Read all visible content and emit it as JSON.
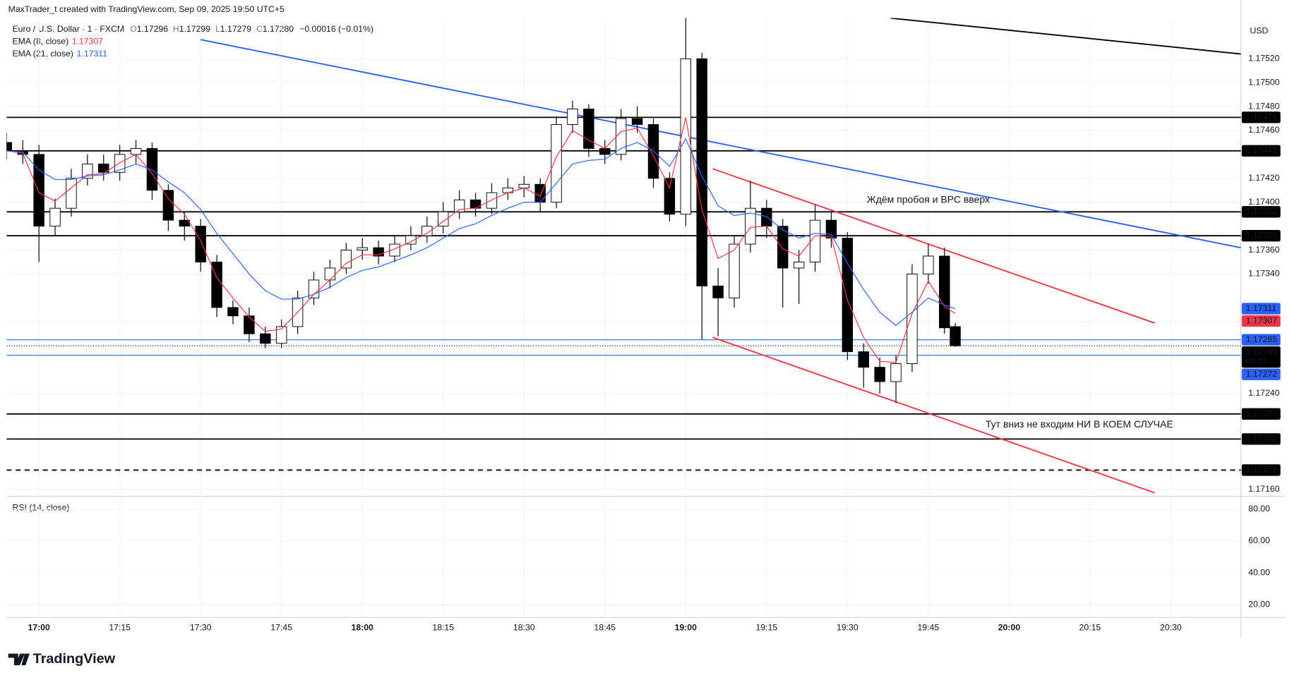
{
  "header": {
    "attribution": "MaxTrader_t created with TradingView.com, Sep 09, 2025 19:50 UTC+5",
    "symbol": "Euro / U.S. Dollar · 1 · FXCM",
    "ohlc": [
      {
        "key": "O",
        "value": "1.17296"
      },
      {
        "key": "H",
        "value": "1.17299"
      },
      {
        "key": "L",
        "value": "1.17279"
      },
      {
        "key": "C",
        "value": "1.17280"
      }
    ],
    "change": "−0.00016 (−0.01%)",
    "currency": "USD"
  },
  "chart_data": [
    {
      "type": "candlestick",
      "x": [
        "16:54",
        "16:57",
        "17:00",
        "17:03",
        "17:06",
        "17:09",
        "17:12",
        "17:15",
        "17:18",
        "17:21",
        "17:24",
        "17:27",
        "17:30",
        "17:33",
        "17:36",
        "17:39",
        "17:42",
        "17:45",
        "17:48",
        "17:51",
        "17:54",
        "17:57",
        "18:00",
        "18:03",
        "18:06",
        "18:09",
        "18:12",
        "18:15",
        "18:18",
        "18:21",
        "18:24",
        "18:27",
        "18:30",
        "18:33",
        "18:36",
        "18:39",
        "18:42",
        "18:45",
        "18:48",
        "18:51",
        "18:54",
        "18:57",
        "19:00",
        "19:03",
        "19:06",
        "19:09",
        "19:12",
        "19:15",
        "19:18",
        "19:21",
        "19:24",
        "19:27",
        "19:30",
        "19:33",
        "19:36",
        "19:39",
        "19:42",
        "19:45",
        "19:48",
        "19:50"
      ],
      "open": [
        1.1745,
        1.17443,
        1.1744,
        1.1738,
        1.17395,
        1.1742,
        1.17432,
        1.17425,
        1.1744,
        1.17445,
        1.1741,
        1.17385,
        1.1738,
        1.1735,
        1.17312,
        1.17305,
        1.1729,
        1.17282,
        1.17296,
        1.1732,
        1.17335,
        1.17345,
        1.1736,
        1.17362,
        1.17355,
        1.17365,
        1.17372,
        1.1738,
        1.17392,
        1.17402,
        1.17395,
        1.17408,
        1.17412,
        1.17415,
        1.174,
        1.17465,
        1.17478,
        1.17445,
        1.1744,
        1.1747,
        1.17465,
        1.1742,
        1.1739,
        1.1752,
        1.1733,
        1.1732,
        1.17365,
        1.17395,
        1.1738,
        1.17345,
        1.1735,
        1.17385,
        1.1737,
        1.17275,
        1.17262,
        1.1725,
        1.17265,
        1.1734,
        1.17355,
        1.17296
      ],
      "high": [
        1.17458,
        1.17452,
        1.17448,
        1.17403,
        1.17428,
        1.1744,
        1.1744,
        1.17448,
        1.17452,
        1.1745,
        1.17415,
        1.17392,
        1.17386,
        1.17356,
        1.17318,
        1.17312,
        1.17296,
        1.17302,
        1.17326,
        1.17342,
        1.17352,
        1.17366,
        1.1737,
        1.17368,
        1.17372,
        1.1738,
        1.17388,
        1.174,
        1.1741,
        1.17408,
        1.17416,
        1.1742,
        1.17422,
        1.1742,
        1.17472,
        1.17485,
        1.17482,
        1.17452,
        1.17478,
        1.1748,
        1.1747,
        1.17425,
        1.17555,
        1.17525,
        1.17345,
        1.17372,
        1.17418,
        1.17402,
        1.17386,
        1.1736,
        1.17398,
        1.17392,
        1.17375,
        1.17282,
        1.1727,
        1.17272,
        1.17348,
        1.17365,
        1.17362,
        1.17299
      ],
      "low": [
        1.17436,
        1.17432,
        1.1735,
        1.17372,
        1.17388,
        1.17414,
        1.17418,
        1.17418,
        1.17432,
        1.17402,
        1.17376,
        1.17368,
        1.17342,
        1.17304,
        1.17298,
        1.17283,
        1.17278,
        1.17278,
        1.1729,
        1.17314,
        1.17328,
        1.1734,
        1.17352,
        1.17348,
        1.1735,
        1.1736,
        1.17366,
        1.17374,
        1.17386,
        1.17388,
        1.1739,
        1.17402,
        1.17404,
        1.17392,
        1.17395,
        1.17458,
        1.17438,
        1.17432,
        1.17435,
        1.17458,
        1.17412,
        1.17384,
        1.1738,
        1.17285,
        1.17288,
        1.17312,
        1.17358,
        1.1737,
        1.17312,
        1.17315,
        1.17342,
        1.17362,
        1.17268,
        1.17245,
        1.1724,
        1.17232,
        1.17258,
        1.17332,
        1.1729,
        1.17279
      ],
      "close": [
        1.17443,
        1.1744,
        1.1738,
        1.17395,
        1.1742,
        1.17432,
        1.17425,
        1.1744,
        1.17445,
        1.1741,
        1.17385,
        1.1738,
        1.1735,
        1.17312,
        1.17305,
        1.1729,
        1.17282,
        1.17296,
        1.1732,
        1.17335,
        1.17345,
        1.1736,
        1.17362,
        1.17355,
        1.17365,
        1.17372,
        1.1738,
        1.17392,
        1.17402,
        1.17395,
        1.17408,
        1.17412,
        1.17415,
        1.174,
        1.17465,
        1.17478,
        1.17445,
        1.1744,
        1.1747,
        1.17465,
        1.1742,
        1.1739,
        1.1752,
        1.1733,
        1.1732,
        1.17365,
        1.17395,
        1.1738,
        1.17345,
        1.1735,
        1.17385,
        1.1737,
        1.17275,
        1.17262,
        1.1725,
        1.17265,
        1.1734,
        1.17355,
        1.17295,
        1.1728
      ],
      "up_color": "#ffffff",
      "down_color": "#000000",
      "series": [
        {
          "name": "EMA (8, close)",
          "color": "#f23645",
          "last": 1.17307,
          "values": [
            1.17443,
            1.17441,
            1.17408,
            1.17401,
            1.17412,
            1.17423,
            1.17424,
            1.17433,
            1.1744,
            1.17424,
            1.17403,
            1.1739,
            1.17368,
            1.17337,
            1.1732,
            1.17304,
            1.17292,
            1.17294,
            1.17308,
            1.17323,
            1.17335,
            1.17349,
            1.17356,
            1.17356,
            1.17361,
            1.17367,
            1.17374,
            1.17384,
            1.17394,
            1.17395,
            1.17402,
            1.17408,
            1.17412,
            1.17405,
            1.17438,
            1.1746,
            1.17452,
            1.17445,
            1.17459,
            1.17462,
            1.17439,
            1.17412,
            1.17471,
            1.17394,
            1.17353,
            1.1736,
            1.17379,
            1.1738,
            1.17361,
            1.17355,
            1.17372,
            1.17371,
            1.17318,
            1.17287,
            1.17267,
            1.17266,
            1.17307,
            1.17334,
            1.17313,
            1.17307
          ]
        },
        {
          "name": "EMA (21, close)",
          "color": "#2962ff",
          "last": 1.17311,
          "values": [
            1.17443,
            1.17442,
            1.17427,
            1.17419,
            1.17419,
            1.17422,
            1.17423,
            1.17427,
            1.17432,
            1.17427,
            1.17417,
            1.17408,
            1.17394,
            1.17374,
            1.17357,
            1.1734,
            1.17326,
            1.17319,
            1.17319,
            1.17323,
            1.17329,
            1.17337,
            1.17343,
            1.17346,
            1.17351,
            1.17356,
            1.17362,
            1.1737,
            1.17378,
            1.17382,
            1.17389,
            1.17395,
            1.174,
            1.174,
            1.17416,
            1.17432,
            1.17435,
            1.17436,
            1.17445,
            1.1745,
            1.17443,
            1.1743,
            1.17453,
            1.17422,
            1.17397,
            1.17389,
            1.17391,
            1.17388,
            1.17377,
            1.1737,
            1.17374,
            1.17373,
            1.17349,
            1.17327,
            1.17308,
            1.17297,
            1.17308,
            1.1732,
            1.17314,
            1.17311
          ]
        }
      ],
      "xlim": [
        "16:54",
        "20:43"
      ],
      "xticks": [
        "17:00",
        "17:15",
        "17:30",
        "17:45",
        "18:00",
        "18:15",
        "18:30",
        "18:45",
        "19:00",
        "19:15",
        "19:30",
        "19:45",
        "20:00",
        "20:15",
        "20:30"
      ],
      "ylim": [
        1.17154,
        1.17554
      ],
      "yticks": [
        {
          "value": 1.1752,
          "label": "1.17520"
        },
        {
          "value": 1.175,
          "label": "1.17500"
        },
        {
          "value": 1.1748,
          "label": "1.17480"
        },
        {
          "value": 1.1746,
          "label": "1.17460"
        },
        {
          "value": 1.1742,
          "label": "1.17420"
        },
        {
          "value": 1.174,
          "label": "1.17400"
        },
        {
          "value": 1.1736,
          "label": "1.17360"
        },
        {
          "value": 1.1734,
          "label": "1.17340"
        },
        {
          "value": 1.173,
          "label": "1.17300"
        },
        {
          "value": 1.1724,
          "label": "1.17240"
        },
        {
          "value": 1.1716,
          "label": "1.17160"
        }
      ],
      "grid": true,
      "levels": [
        {
          "value": 1.17471,
          "color": "#000000",
          "style": "solid"
        },
        {
          "value": 1.17443,
          "color": "#000000",
          "style": "solid"
        },
        {
          "value": 1.17392,
          "color": "#000000",
          "style": "solid"
        },
        {
          "value": 1.17372,
          "color": "#000000",
          "style": "solid"
        },
        {
          "value": 1.17285,
          "color": "#2962ff",
          "style": "solid"
        },
        {
          "value": 1.17272,
          "color": "#2962ff",
          "style": "solid"
        },
        {
          "value": 1.17223,
          "color": "#000000",
          "style": "solid"
        },
        {
          "value": 1.17202,
          "color": "#000000",
          "style": "solid"
        },
        {
          "value": 1.17176,
          "color": "#000000",
          "style": "dashed"
        }
      ],
      "last_price": {
        "value": 1.1728,
        "label": "1.17280"
      },
      "countdown": "00:28",
      "trendlines": [
        {
          "color": "#2962ff",
          "x": [
            "17:30",
            "20:43"
          ],
          "y": [
            1.17536,
            1.17362
          ]
        },
        {
          "color": "#000000",
          "x": [
            "19:38",
            "20:43"
          ],
          "y": [
            1.17554,
            1.17524
          ]
        },
        {
          "color": "#f23645",
          "x": [
            "19:05",
            "20:27"
          ],
          "y": [
            1.17428,
            1.17299
          ]
        },
        {
          "color": "#f23645",
          "x": [
            "19:05",
            "20:27"
          ],
          "y": [
            1.17287,
            1.17157
          ]
        }
      ],
      "annotations": [
        "Ждём пробоя и ВРС вверх",
        "Тут вниз не входим НИ В КОЕМ СЛУЧАЕ"
      ]
    },
    {
      "type": "oscillator",
      "title": "RSI (14, close)",
      "ylim": [
        12,
        88
      ],
      "yticks": [
        {
          "value": 80,
          "label": "80.00"
        },
        {
          "value": 60,
          "label": "60.00"
        },
        {
          "value": 40,
          "label": "40.00"
        },
        {
          "value": 20,
          "label": "20.00"
        }
      ]
    }
  ],
  "footer": {
    "brand": "TradingView"
  }
}
